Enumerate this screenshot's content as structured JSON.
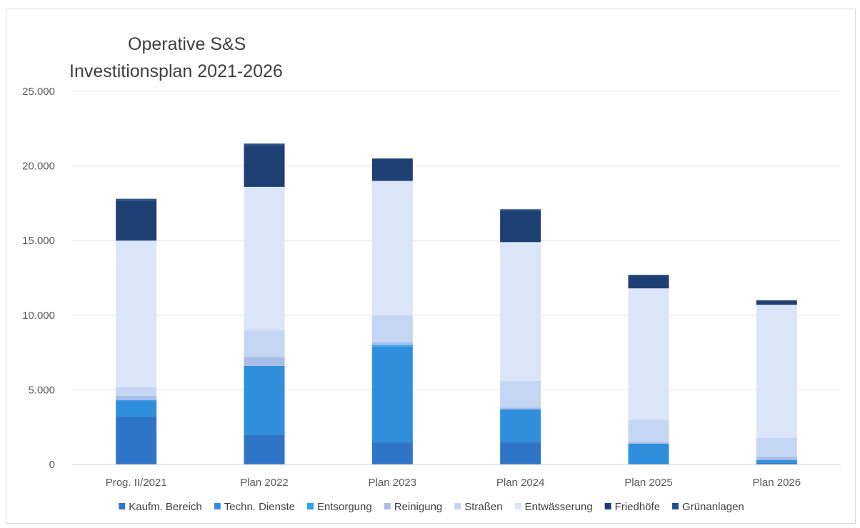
{
  "chart_data": {
    "type": "bar",
    "stacked": true,
    "title_lines": [
      "Operative S&S",
      "Investitionsplan 2021-2026"
    ],
    "xlabel": "",
    "ylabel": "",
    "ylim": [
      0,
      25000
    ],
    "y_ticks": [
      0,
      5000,
      10000,
      15000,
      20000,
      25000
    ],
    "y_tick_labels": [
      "0",
      "5.000",
      "10.000",
      "15.000",
      "20.000",
      "25.000"
    ],
    "grid": true,
    "legend_position": "bottom",
    "categories": [
      "Prog. II/2021",
      "Plan 2022",
      "Plan 2023",
      "Plan 2024",
      "Plan 2025",
      "Plan 2026"
    ],
    "series": [
      {
        "name": "Kaufm. Bereich",
        "color": "#2F75C7",
        "values": [
          3200,
          2000,
          1500,
          1500,
          0,
          100
        ]
      },
      {
        "name": "Techn. Dienste",
        "color": "#2F8FDD",
        "values": [
          1100,
          4600,
          6400,
          2200,
          1400,
          200
        ]
      },
      {
        "name": "Entsorgung",
        "color": "#28A3EC",
        "values": [
          0,
          0,
          100,
          0,
          0,
          0
        ]
      },
      {
        "name": "Reinigung",
        "color": "#A9BDE9",
        "values": [
          300,
          600,
          200,
          100,
          100,
          200
        ]
      },
      {
        "name": "Straßen",
        "color": "#C5D6F4",
        "values": [
          600,
          1800,
          1800,
          1800,
          1500,
          1300
        ]
      },
      {
        "name": "Entwässerung",
        "color": "#DAE5F7",
        "values": [
          9800,
          9600,
          9000,
          9300,
          8800,
          8900
        ]
      },
      {
        "name": "Friedhöfe",
        "color": "#1E3F73",
        "values": [
          2700,
          2800,
          1500,
          2100,
          900,
          300
        ]
      },
      {
        "name": "Grünanlagen",
        "color": "#25508E",
        "values": [
          100,
          100,
          0,
          100,
          0,
          0
        ]
      }
    ]
  }
}
